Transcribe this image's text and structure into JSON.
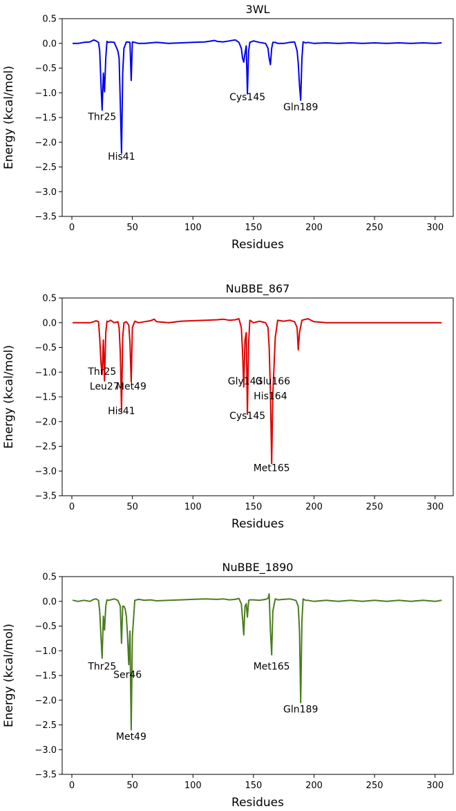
{
  "chart_data": [
    {
      "type": "line",
      "title": "3WL",
      "xlabel": "Residues",
      "ylabel": "Energy (kcal/mol)",
      "xlim": [
        -8,
        315
      ],
      "ylim": [
        -3.5,
        0.5
      ],
      "xticks": [
        0,
        50,
        100,
        150,
        200,
        250,
        300
      ],
      "xtick_labels": [
        "0",
        "50",
        "100",
        "150",
        "200",
        "250",
        "300"
      ],
      "yticks": [
        0.5,
        0.0,
        -0.5,
        -1.0,
        -1.5,
        -2.0,
        -2.5,
        -3.0,
        -3.5
      ],
      "ytick_labels": [
        "0.5",
        "0.0",
        "−0.5",
        "−1.0",
        "−1.5",
        "−2.0",
        "−2.5",
        "−3.0",
        "−3.5"
      ],
      "color": "#0000ee",
      "grid": false,
      "series": [
        {
          "x": [
            1,
            5,
            10,
            15,
            18,
            20,
            22,
            23,
            24,
            25,
            26,
            27,
            28,
            29,
            30,
            32,
            35,
            38,
            39,
            40,
            41,
            42,
            43,
            45,
            48,
            49,
            50,
            52,
            55,
            60,
            65,
            70,
            80,
            90,
            100,
            110,
            118,
            120,
            125,
            130,
            135,
            138,
            140,
            141,
            142,
            143,
            144,
            145,
            146,
            147,
            150,
            155,
            160,
            162,
            163,
            164,
            165,
            166,
            168,
            170,
            175,
            180,
            184,
            186,
            187,
            188,
            189,
            190,
            191,
            193,
            195,
            200,
            210,
            220,
            230,
            240,
            250,
            260,
            270,
            280,
            290,
            300,
            305
          ],
          "y": [
            0.0,
            0.0,
            0.02,
            0.03,
            0.07,
            0.05,
            0.02,
            -0.15,
            -0.8,
            -1.35,
            -0.6,
            -0.98,
            -0.3,
            0.04,
            0.02,
            0.03,
            0.02,
            -0.15,
            -0.3,
            -1.2,
            -2.22,
            -0.6,
            -0.1,
            0.03,
            0.02,
            -0.75,
            0.03,
            0.02,
            0.0,
            0.0,
            0.01,
            0.02,
            0.0,
            0.01,
            0.02,
            0.03,
            0.06,
            0.04,
            0.03,
            0.05,
            0.07,
            0.02,
            -0.1,
            -0.3,
            -0.38,
            -0.2,
            -0.05,
            -1.02,
            -0.15,
            0.02,
            0.05,
            0.02,
            0.0,
            -0.1,
            -0.3,
            -0.43,
            -0.1,
            0.02,
            0.02,
            0.0,
            0.0,
            0.02,
            0.03,
            -0.15,
            -0.4,
            -0.85,
            -1.15,
            -0.3,
            0.03,
            0.01,
            0.02,
            0.0,
            0.01,
            0.0,
            0.01,
            0.0,
            0.01,
            0.0,
            0.01,
            0.0,
            0.01,
            0.0,
            0.01
          ]
        }
      ],
      "annotations": [
        {
          "text": "Thr25",
          "x": 25,
          "y": -1.55
        },
        {
          "text": "His41",
          "x": 41,
          "y": -2.35
        },
        {
          "text": "Cys145",
          "x": 145,
          "y": -1.15
        },
        {
          "text": "Gln189",
          "x": 189,
          "y": -1.35
        }
      ]
    },
    {
      "type": "line",
      "title": "NuBBE_867",
      "xlabel": "Residues",
      "ylabel": "Energy (kcal/mol)",
      "xlim": [
        -8,
        315
      ],
      "ylim": [
        -3.5,
        0.5
      ],
      "xticks": [
        0,
        50,
        100,
        150,
        200,
        250,
        300
      ],
      "xtick_labels": [
        "0",
        "50",
        "100",
        "150",
        "200",
        "250",
        "300"
      ],
      "yticks": [
        0.5,
        0.0,
        -0.5,
        -1.0,
        -1.5,
        -2.0,
        -2.5,
        -3.0,
        -3.5
      ],
      "ytick_labels": [
        "0.5",
        "0.0",
        "−0.5",
        "−1.0",
        "−1.5",
        "−2.0",
        "−2.5",
        "−3.0",
        "−3.5"
      ],
      "color": "#dd0000",
      "grid": false,
      "series": [
        {
          "x": [
            1,
            5,
            10,
            15,
            18,
            20,
            22,
            23,
            24,
            25,
            26,
            27,
            28,
            29,
            30,
            32,
            35,
            38,
            39,
            40,
            41,
            42,
            43,
            45,
            47,
            48,
            49,
            50,
            52,
            55,
            60,
            65,
            68,
            70,
            80,
            90,
            100,
            110,
            120,
            125,
            130,
            135,
            138,
            140,
            141,
            142,
            143,
            144,
            145,
            146,
            147,
            150,
            155,
            160,
            162,
            163,
            164,
            165,
            166,
            168,
            170,
            175,
            180,
            184,
            186,
            187,
            188,
            190,
            195,
            200,
            210,
            220,
            230,
            240,
            250,
            260,
            270,
            280,
            290,
            300,
            305
          ],
          "y": [
            0.0,
            0.0,
            0.0,
            0.0,
            0.02,
            0.04,
            0.02,
            -0.3,
            -0.8,
            -1.05,
            -0.35,
            -1.18,
            -0.2,
            0.03,
            0.02,
            0.05,
            0.0,
            0.02,
            -0.1,
            -0.6,
            -1.78,
            -0.3,
            0.0,
            0.02,
            -0.05,
            -0.4,
            -1.2,
            -0.1,
            0.03,
            0.0,
            0.02,
            0.04,
            0.07,
            0.02,
            0.0,
            0.03,
            0.04,
            0.05,
            0.06,
            0.07,
            0.05,
            0.06,
            0.08,
            -0.1,
            -0.6,
            -1.3,
            -0.35,
            -0.2,
            -1.85,
            -0.4,
            0.05,
            0.0,
            0.03,
            0.0,
            -0.1,
            -0.5,
            -1.4,
            -2.85,
            -1.45,
            -0.3,
            0.05,
            0.03,
            0.05,
            0.02,
            -0.1,
            -0.55,
            -0.2,
            0.05,
            0.08,
            0.02,
            0.0,
            0.0,
            0.0,
            0.0,
            0.0,
            0.0,
            0.0,
            0.0,
            0.0,
            0.0,
            0.0
          ]
        }
      ],
      "annotations": [
        {
          "text": "Thr25",
          "x": 25,
          "y": -1.05
        },
        {
          "text": "Leu27",
          "x": 27,
          "y": -1.35
        },
        {
          "text": "Met49",
          "x": 49,
          "y": -1.35
        },
        {
          "text": "His41",
          "x": 41,
          "y": -1.85
        },
        {
          "text": "Gly143",
          "x": 143,
          "y": -1.25
        },
        {
          "text": "Glu166",
          "x": 166,
          "y": -1.25
        },
        {
          "text": "His164",
          "x": 164,
          "y": -1.55
        },
        {
          "text": "Cys145",
          "x": 145,
          "y": -1.95
        },
        {
          "text": "Met165",
          "x": 165,
          "y": -3.0
        }
      ]
    },
    {
      "type": "line",
      "title": "NuBBE_1890",
      "xlabel": "Residues",
      "ylabel": "Energy (kcal/mol)",
      "xlim": [
        -8,
        315
      ],
      "ylim": [
        -3.5,
        0.5
      ],
      "xticks": [
        0,
        50,
        100,
        150,
        200,
        250,
        300
      ],
      "xtick_labels": [
        "0",
        "50",
        "100",
        "150",
        "200",
        "250",
        "300"
      ],
      "yticks": [
        0.5,
        0.0,
        -0.5,
        -1.0,
        -1.5,
        -2.0,
        -2.5,
        -3.0,
        -3.5
      ],
      "ytick_labels": [
        "0.5",
        "0.0",
        "−0.5",
        "−1.0",
        "−1.5",
        "−2.0",
        "−2.5",
        "−3.0",
        "−3.5"
      ],
      "color": "#4a7c1e",
      "grid": false,
      "series": [
        {
          "x": [
            1,
            5,
            10,
            15,
            18,
            20,
            22,
            23,
            24,
            25,
            26,
            27,
            28,
            29,
            30,
            32,
            35,
            38,
            40,
            41,
            42,
            43,
            44,
            45,
            46,
            47,
            48,
            49,
            50,
            52,
            55,
            60,
            65,
            70,
            80,
            90,
            100,
            110,
            120,
            125,
            130,
            135,
            138,
            140,
            141,
            142,
            143,
            144,
            145,
            146,
            147,
            150,
            155,
            160,
            162,
            163,
            164,
            165,
            166,
            168,
            170,
            175,
            180,
            185,
            187,
            188,
            189,
            190,
            191,
            193,
            195,
            200,
            210,
            220,
            230,
            240,
            250,
            260,
            270,
            280,
            290,
            300,
            305
          ],
          "y": [
            0.02,
            0.0,
            0.02,
            0.0,
            0.04,
            0.05,
            0.02,
            -0.2,
            -0.7,
            -1.15,
            -0.3,
            -0.58,
            -0.1,
            0.03,
            0.02,
            0.03,
            0.05,
            0.02,
            -0.1,
            -0.85,
            -0.1,
            -0.1,
            -0.15,
            -0.3,
            -0.7,
            -1.28,
            -0.6,
            -2.6,
            -0.7,
            0.02,
            0.04,
            0.02,
            0.03,
            0.01,
            0.02,
            0.03,
            0.04,
            0.05,
            0.04,
            0.05,
            0.03,
            0.04,
            0.06,
            -0.05,
            -0.35,
            -0.68,
            -0.1,
            -0.05,
            -0.32,
            0.02,
            0.03,
            0.03,
            0.02,
            0.04,
            0.06,
            0.15,
            -0.6,
            -1.08,
            -0.2,
            0.05,
            0.03,
            0.04,
            0.05,
            0.02,
            -0.1,
            -0.6,
            -2.05,
            -0.4,
            0.05,
            0.02,
            0.02,
            0.0,
            0.02,
            0.0,
            0.02,
            0.0,
            0.02,
            0.0,
            0.02,
            0.0,
            0.02,
            0.0,
            0.02
          ]
        }
      ],
      "annotations": [
        {
          "text": "Thr25",
          "x": 25,
          "y": -1.38
        },
        {
          "text": "Ser46",
          "x": 46,
          "y": -1.55
        },
        {
          "text": "Met49",
          "x": 49,
          "y": -2.8
        },
        {
          "text": "Met165",
          "x": 165,
          "y": -1.38
        },
        {
          "text": "Gln189",
          "x": 189,
          "y": -2.25
        }
      ]
    }
  ]
}
